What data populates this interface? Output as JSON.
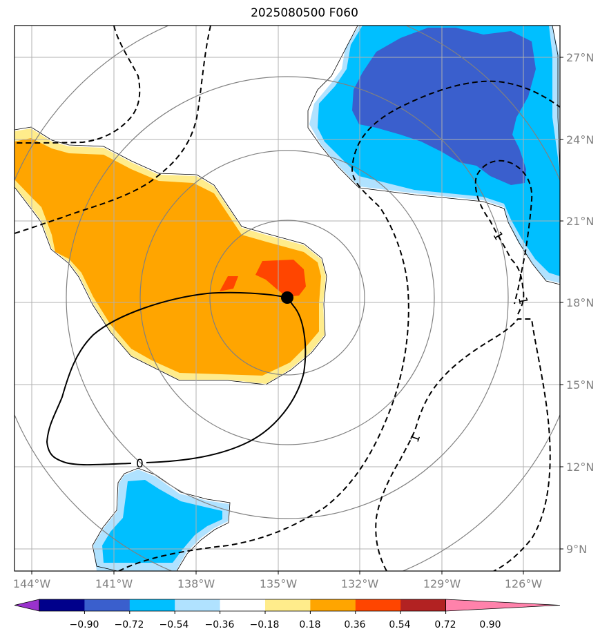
{
  "title": "2025080500 F060",
  "longitude_labels": [
    "144°W",
    "141°W",
    "138°W",
    "135°W",
    "132°W",
    "129°W",
    "126°W"
  ],
  "latitude_labels": [
    "27°N",
    "24°N",
    "21°N",
    "18°N",
    "15°N",
    "12°N",
    "9°N"
  ],
  "contour_labels": [
    "0",
    "1",
    "1",
    "1"
  ],
  "colorbar": {
    "tick_labels": [
      "−0.90",
      "−0.72",
      "−0.54",
      "−0.36",
      "−0.18",
      "0.18",
      "0.36",
      "0.54",
      "0.72",
      "0.90"
    ],
    "colors": [
      "#9932CC",
      "#00008B",
      "#3A5FCD",
      "#00BFFF",
      "#B0E2FF",
      "#FFFFFF",
      "#FFEC8B",
      "#FFA500",
      "#FF4500",
      "#B22222",
      "#FF82AB"
    ]
  },
  "colors": {
    "frame": "#000000",
    "grid": "#b0b0b0",
    "range_rings": "#808080",
    "storm_center": "#000000"
  }
}
